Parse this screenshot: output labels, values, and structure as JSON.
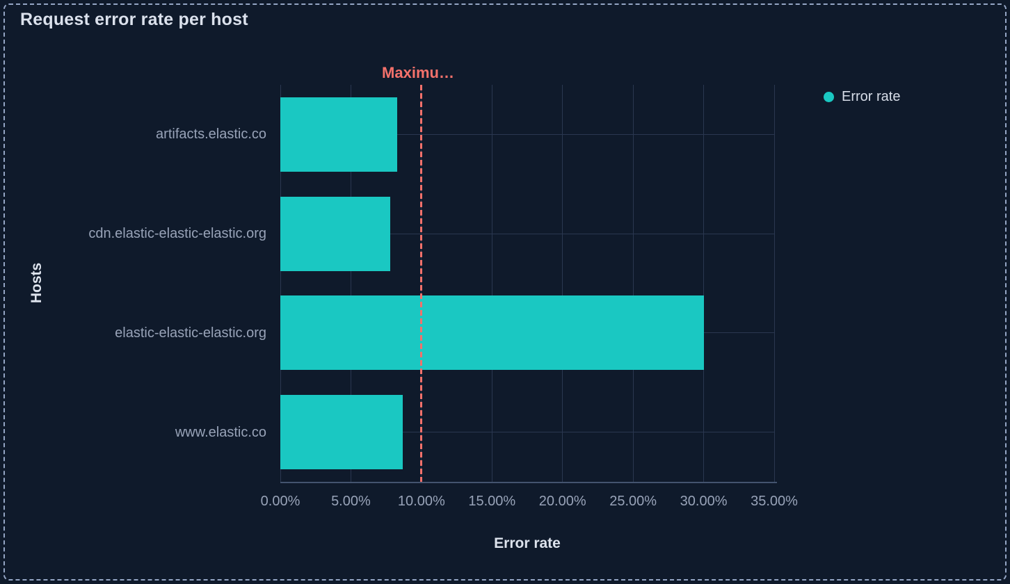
{
  "panel": {
    "title": "Request error rate per host"
  },
  "legend": {
    "items": [
      {
        "label": "Error rate",
        "color": "#1ac8c2"
      }
    ]
  },
  "chart_data": {
    "type": "bar",
    "orientation": "horizontal",
    "title": "Request error rate per host",
    "categories": [
      "artifacts.elastic.co",
      "cdn.elastic-elastic-elastic.org",
      "elastic-elastic-elastic.org",
      "www.elastic.co"
    ],
    "series": [
      {
        "name": "Error rate",
        "color": "#1ac8c2",
        "values": [
          8.3,
          7.8,
          30.0,
          8.7
        ]
      }
    ],
    "value_unit": "%",
    "xlabel": "Error rate",
    "ylabel": "Hosts",
    "xlim": [
      0,
      35
    ],
    "x_ticks": [
      {
        "value": 0,
        "label": "0.00%"
      },
      {
        "value": 5,
        "label": "5.00%"
      },
      {
        "value": 10,
        "label": "10.00%"
      },
      {
        "value": 15,
        "label": "15.00%"
      },
      {
        "value": 20,
        "label": "20.00%"
      },
      {
        "value": 25,
        "label": "25.00%"
      },
      {
        "value": 30,
        "label": "30.00%"
      },
      {
        "value": 35,
        "label": "35.00%"
      }
    ],
    "grid": true,
    "legend_position": "top-right",
    "threshold": {
      "label": "Maximu…",
      "value": 10,
      "color": "#f4716b",
      "style": "dashed"
    }
  },
  "colors": {
    "background": "#0f1a2b",
    "panel_border": "#95a6c5",
    "bar": "#1ac8c2",
    "grid": "#2a3750",
    "axis_line": "#44536f",
    "tick_label": "#98a3b8",
    "axis_title": "#dde3ed",
    "title": "#dbe1ec",
    "threshold": "#f4716b",
    "legend_text": "#d7dde8"
  }
}
